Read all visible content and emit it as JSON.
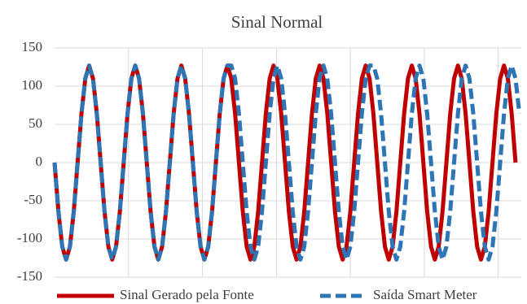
{
  "chart_data": {
    "type": "line",
    "title": "Sinal Normal",
    "ylim": [
      -150,
      150
    ],
    "yticks": [
      -150,
      -100,
      -50,
      0,
      50,
      100,
      150
    ],
    "xlim": [
      0,
      121.5
    ],
    "xticks": [
      19.25,
      38.5,
      57.75,
      77,
      96.25,
      115.5
    ],
    "grid": true,
    "legend": "bottom",
    "series": [
      {
        "name": "Sinal Gerado pela Fonte",
        "color": "#c00000",
        "style": "solid",
        "values": [
          0,
          -64,
          -110,
          -127,
          -110,
          -64,
          0,
          64,
          110,
          127,
          110,
          64,
          0,
          -64,
          -110,
          -127,
          -110,
          -64,
          0,
          64,
          110,
          127,
          110,
          64,
          0,
          -64,
          -110,
          -127,
          -110,
          -64,
          0,
          64,
          110,
          127,
          110,
          64,
          0,
          -64,
          -110,
          -127,
          -110,
          -64,
          0,
          64,
          110,
          127,
          110,
          64,
          0,
          -64,
          -110,
          -127,
          -110,
          -64,
          0,
          64,
          110,
          127,
          110,
          64,
          0,
          -64,
          -110,
          -127,
          -110,
          -64,
          0,
          64,
          110,
          127,
          110,
          64,
          0,
          -64,
          -110,
          -127,
          -110,
          -64,
          0,
          64,
          110,
          127,
          110,
          64,
          0,
          -64,
          -110,
          -127,
          -110,
          -64,
          0,
          64,
          110,
          127,
          110,
          64,
          0,
          -64,
          -110,
          -127,
          -110,
          -64,
          0,
          64,
          110,
          127,
          110,
          64,
          0,
          -64,
          -110,
          -127,
          -110,
          -64,
          0,
          64,
          110,
          127,
          110,
          64,
          0,
          null
        ]
      },
      {
        "name": "Saída Smart Meter",
        "color": "#2e75b6",
        "style": "dashed",
        "values": [
          0,
          -64,
          -110,
          -127,
          -110,
          -64,
          0,
          64,
          110,
          127,
          110,
          64,
          0,
          -64,
          -110,
          -127,
          -110,
          -64,
          0,
          64,
          110,
          127,
          110,
          64,
          0,
          -64,
          -110,
          -127,
          -110,
          -64,
          0,
          64,
          110,
          127,
          110,
          64,
          0,
          -64,
          -110,
          -127,
          -110,
          -64,
          0,
          64,
          110,
          127,
          127,
          110,
          64,
          0,
          -64,
          -110,
          -127,
          -110,
          -64,
          0,
          64,
          110,
          127,
          110,
          64,
          0,
          -64,
          -110,
          -127,
          -110,
          -64,
          0,
          64,
          110,
          127,
          110,
          64,
          0,
          -64,
          -110,
          -127,
          -110,
          -64,
          0,
          64,
          110,
          127,
          127,
          110,
          64,
          0,
          -64,
          -110,
          -127,
          -110,
          -64,
          0,
          64,
          110,
          127,
          110,
          64,
          0,
          -64,
          -110,
          -127,
          -110,
          -64,
          0,
          64,
          110,
          127,
          110,
          64,
          0,
          -64,
          -110,
          -127,
          -110,
          -64,
          0,
          64,
          110,
          127,
          110,
          64
        ]
      }
    ]
  }
}
